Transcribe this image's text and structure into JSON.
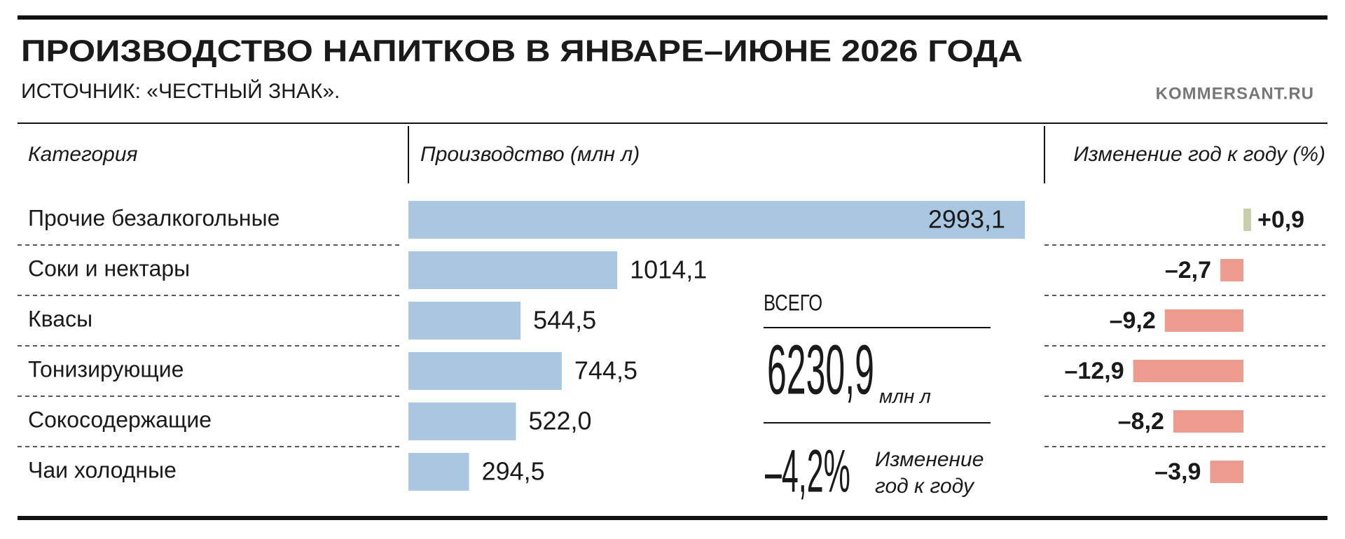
{
  "chart_data": {
    "type": "bar",
    "title": "ПРОИЗВОДСТВО НАПИТКОВ В ЯНВАРЕ–ИЮНЕ 2026 ГОДА",
    "subtitle": "ИСТОЧНИК: «ЧЕСТНЫЙ ЗНАК».",
    "credit": "KOMMERSANT.RU",
    "categories_label": "Категория",
    "categories": [
      "Прочие безалкогольные",
      "Соки и нектары",
      "Квасы",
      "Тонизирующие",
      "Сокосодержащие",
      "Чаи холодные"
    ],
    "series": [
      {
        "name": "Производство (млн л)",
        "color": "#aac7e1",
        "values": [
          2993.1,
          1014.1,
          544.5,
          744.5,
          522.0,
          294.5
        ],
        "value_labels": [
          "2993,1",
          "1014,1",
          "544,5",
          "744,5",
          "522,0",
          "294,5"
        ]
      },
      {
        "name": "Изменение год к году (%)",
        "color": "#ef9c90",
        "positive_color": "#c8cfa8",
        "values": [
          0.9,
          -2.7,
          -9.2,
          -12.9,
          -8.2,
          -3.9
        ],
        "value_labels": [
          "+0,9",
          "–2,7",
          "–9,2",
          "–12,9",
          "–8,2",
          "–3,9"
        ]
      }
    ],
    "total": {
      "label": "ВСЕГО",
      "value": 6230.9,
      "value_label": "6230,9",
      "unit": "млн л",
      "change": -4.2,
      "change_label": "–4,2%",
      "change_caption": [
        "Изменение",
        "год к году"
      ]
    }
  }
}
